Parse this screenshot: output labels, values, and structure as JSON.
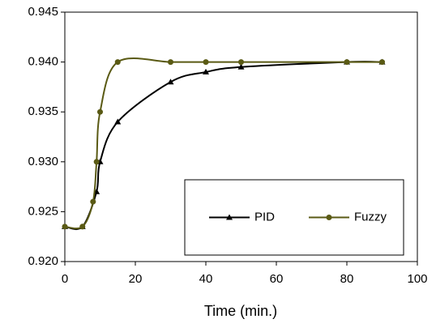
{
  "chart_data": {
    "type": "line",
    "x_label": "Time (min.)",
    "xlim": [
      0,
      100
    ],
    "xticks": [
      0,
      20,
      40,
      60,
      80,
      100
    ],
    "ylim": [
      0.92,
      0.945
    ],
    "yticks": [
      {
        "value": 0.92,
        "label": "0.920"
      },
      0.925,
      {
        "value": 0.93,
        "label": "0.930"
      },
      0.935,
      {
        "value": 0.94,
        "label": "0.940"
      },
      0.945
    ],
    "grid": false,
    "legend": "lower right",
    "smooth": true,
    "series": [
      {
        "name": "PID",
        "color": "#000000",
        "marker": "triangle",
        "x": [
          0,
          5,
          9,
          10,
          15,
          30,
          40,
          50,
          80,
          90
        ],
        "values": [
          0.9235,
          0.9235,
          0.927,
          0.93,
          0.934,
          0.938,
          0.939,
          0.9395,
          0.94,
          0.94
        ]
      },
      {
        "name": "Fuzzy",
        "color": "#5a5a14",
        "marker": "circle",
        "x": [
          0,
          5,
          8,
          9,
          10,
          15,
          30,
          40,
          50,
          80,
          90
        ],
        "values": [
          0.9235,
          0.9235,
          0.926,
          0.93,
          0.935,
          0.94,
          0.94,
          0.94,
          0.94,
          0.94,
          0.94
        ]
      }
    ]
  }
}
